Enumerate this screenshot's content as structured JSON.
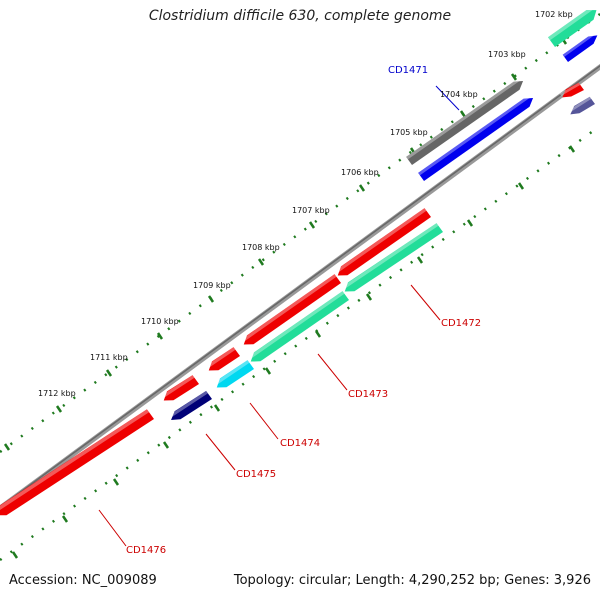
{
  "title": "Clostridium difficile 630, complete genome",
  "footer": {
    "accession_label": "Accession: ",
    "accession": "NC_009089",
    "topology_label": "Topology: ",
    "topology": "circular",
    "length_label": "Length: ",
    "length": "4,290,252 bp",
    "genes_label": "Genes: ",
    "genes": "3,926"
  },
  "ruler": {
    "unit": "kbp",
    "labels": [
      "1702 kbp",
      "1703 kbp",
      "1704 kbp",
      "1705 kbp",
      "1706 kbp",
      "1707 kbp",
      "1708 kbp",
      "1709 kbp",
      "1710 kbp",
      "1711 kbp",
      "1712 kbp"
    ]
  },
  "colors": {
    "backbone": "#8a8a8a",
    "tick": "#1f7a1f",
    "gene_label_forward": "#0000cc",
    "gene_label_reverse": "#cc0000",
    "red": "#ee0000",
    "green": "#22dd99",
    "blue": "#0000ee",
    "gray": "#666666",
    "navy": "#000077",
    "cyan": "#00d8f0",
    "slate": "#555599"
  },
  "gene_labels": [
    "CD1471",
    "CD1472",
    "CD1473",
    "CD1474",
    "CD1475",
    "CD1476"
  ]
}
